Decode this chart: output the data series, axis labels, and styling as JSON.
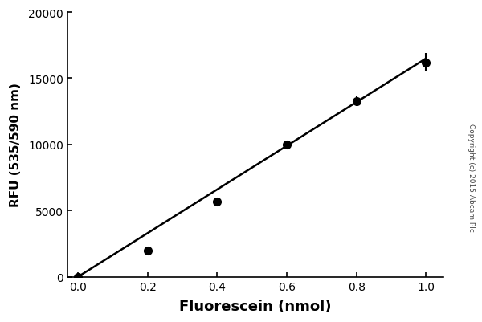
{
  "x": [
    0.0,
    0.2,
    0.4,
    0.6,
    0.8,
    1.0
  ],
  "y": [
    0,
    2000,
    5700,
    10000,
    13300,
    16200
  ],
  "yerr": [
    0,
    0,
    0,
    0,
    400,
    700
  ],
  "fit_x": [
    0.0,
    1.0
  ],
  "fit_y": [
    0,
    16500
  ],
  "xlabel": "Fluorescein (nmol)",
  "ylabel": "RFU (535/590 nm)",
  "xlim": [
    -0.03,
    1.05
  ],
  "ylim": [
    0,
    20000
  ],
  "xticks": [
    0.0,
    0.2,
    0.4,
    0.6,
    0.8,
    1.0
  ],
  "yticks": [
    0,
    5000,
    10000,
    15000,
    20000
  ],
  "copyright": "Copyright (c) 2015 Abcam Plc",
  "marker_color": "#000000",
  "line_color": "#000000",
  "bg_color": "#ffffff",
  "xlabel_fontsize": 13,
  "ylabel_fontsize": 11,
  "tick_fontsize": 10,
  "marker_size": 8,
  "line_width": 1.8,
  "cap_size": 3
}
